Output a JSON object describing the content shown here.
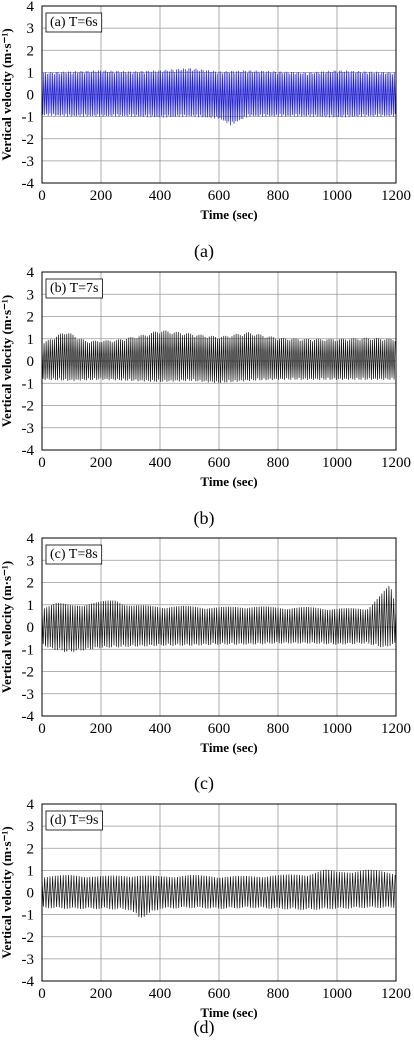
{
  "chart_data": [
    {
      "type": "line",
      "annotation": "(a) T=6s",
      "caption": "(a)",
      "xlabel": "Time (sec)",
      "ylabel": "Vertical velocity (m·s⁻¹)",
      "xlim": [
        0,
        1200
      ],
      "ylim": [
        -4,
        4
      ],
      "xticks": [
        0,
        200,
        400,
        600,
        800,
        1000,
        1200
      ],
      "yticks": [
        -4,
        -3,
        -2,
        -1,
        0,
        1,
        2,
        3,
        4
      ],
      "grid": true,
      "line_color": "#2020d0",
      "series": [
        {
          "period_s": 6,
          "envelope_max": [
            [
              0,
              1.0
            ],
            [
              100,
              1.05
            ],
            [
              200,
              1.1
            ],
            [
              300,
              1.05
            ],
            [
              400,
              1.1
            ],
            [
              500,
              1.2
            ],
            [
              600,
              1.05
            ],
            [
              700,
              1.1
            ],
            [
              800,
              1.05
            ],
            [
              900,
              1.0
            ],
            [
              1000,
              1.1
            ],
            [
              1100,
              1.05
            ],
            [
              1200,
              1.0
            ]
          ],
          "envelope_min": [
            [
              0,
              -0.95
            ],
            [
              100,
              -1.0
            ],
            [
              200,
              -1.0
            ],
            [
              300,
              -1.0
            ],
            [
              400,
              -1.05
            ],
            [
              500,
              -1.0
            ],
            [
              600,
              -1.1
            ],
            [
              640,
              -1.4
            ],
            [
              700,
              -1.0
            ],
            [
              800,
              -1.0
            ],
            [
              900,
              -1.0
            ],
            [
              1000,
              -1.05
            ],
            [
              1100,
              -1.0
            ],
            [
              1200,
              -1.0
            ]
          ]
        }
      ]
    },
    {
      "type": "line",
      "annotation": "(b) T=7s",
      "caption": "(b)",
      "xlabel": "Time (sec)",
      "ylabel": "Vertical velocity (m·s⁻¹)",
      "xlim": [
        0,
        1200
      ],
      "ylim": [
        -4,
        4
      ],
      "xticks": [
        0,
        200,
        400,
        600,
        800,
        1000,
        1200
      ],
      "yticks": [
        -4,
        -3,
        -2,
        -1,
        0,
        1,
        2,
        3,
        4
      ],
      "grid": true,
      "line_color": "#111111",
      "series": [
        {
          "period_s": 7,
          "envelope_max": [
            [
              0,
              0.8
            ],
            [
              80,
              1.35
            ],
            [
              150,
              0.9
            ],
            [
              250,
              0.95
            ],
            [
              350,
              1.2
            ],
            [
              400,
              1.4
            ],
            [
              500,
              1.25
            ],
            [
              600,
              1.1
            ],
            [
              700,
              1.3
            ],
            [
              800,
              1.05
            ],
            [
              900,
              1.0
            ],
            [
              1000,
              1.0
            ],
            [
              1100,
              1.05
            ],
            [
              1200,
              1.0
            ]
          ],
          "envelope_min": [
            [
              0,
              -0.85
            ],
            [
              100,
              -0.9
            ],
            [
              200,
              -0.85
            ],
            [
              300,
              -0.9
            ],
            [
              400,
              -0.95
            ],
            [
              500,
              -0.9
            ],
            [
              600,
              -1.0
            ],
            [
              700,
              -0.9
            ],
            [
              800,
              -0.85
            ],
            [
              900,
              -0.85
            ],
            [
              1000,
              -0.85
            ],
            [
              1100,
              -0.85
            ],
            [
              1200,
              -0.85
            ]
          ]
        }
      ]
    },
    {
      "type": "line",
      "annotation": "(c) T=8s",
      "caption": "(c)",
      "xlabel": "Time (sec)",
      "ylabel": "Vertical velocity (m·s⁻¹)",
      "xlim": [
        0,
        1200
      ],
      "ylim": [
        -4,
        4
      ],
      "xticks": [
        0,
        200,
        400,
        600,
        800,
        1000,
        1200
      ],
      "yticks": [
        -4,
        -3,
        -2,
        -1,
        0,
        1,
        2,
        3,
        4
      ],
      "grid": true,
      "line_color": "#111111",
      "series": [
        {
          "period_s": 8,
          "envelope_max": [
            [
              0,
              0.9
            ],
            [
              50,
              1.1
            ],
            [
              100,
              1.0
            ],
            [
              200,
              1.15
            ],
            [
              250,
              1.25
            ],
            [
              300,
              1.0
            ],
            [
              400,
              0.95
            ],
            [
              500,
              0.95
            ],
            [
              600,
              0.9
            ],
            [
              700,
              0.95
            ],
            [
              800,
              0.9
            ],
            [
              900,
              0.9
            ],
            [
              1000,
              0.85
            ],
            [
              1100,
              0.85
            ],
            [
              1180,
              1.9
            ],
            [
              1200,
              0.9
            ]
          ],
          "envelope_min": [
            [
              0,
              -0.8
            ],
            [
              30,
              -1.0
            ],
            [
              90,
              -1.15
            ],
            [
              200,
              -0.95
            ],
            [
              300,
              -0.9
            ],
            [
              400,
              -0.85
            ],
            [
              500,
              -0.85
            ],
            [
              600,
              -0.8
            ],
            [
              700,
              -0.8
            ],
            [
              800,
              -0.75
            ],
            [
              900,
              -0.75
            ],
            [
              1000,
              -0.8
            ],
            [
              1100,
              -0.75
            ],
            [
              1160,
              -0.95
            ],
            [
              1200,
              -0.75
            ]
          ]
        }
      ]
    },
    {
      "type": "line",
      "annotation": "(d) T=9s",
      "caption": "(d)",
      "xlabel": "Time (sec)",
      "ylabel": "Vertical velocity (m·s⁻¹)",
      "xlim": [
        0,
        1200
      ],
      "ylim": [
        -4,
        4
      ],
      "xticks": [
        0,
        200,
        400,
        600,
        800,
        1000,
        1200
      ],
      "yticks": [
        -4,
        -3,
        -2,
        -1,
        0,
        1,
        2,
        3,
        4
      ],
      "grid": true,
      "line_color": "#111111",
      "series": [
        {
          "period_s": 9,
          "envelope_max": [
            [
              0,
              0.75
            ],
            [
              100,
              0.8
            ],
            [
              200,
              0.75
            ],
            [
              300,
              0.8
            ],
            [
              400,
              0.75
            ],
            [
              500,
              0.8
            ],
            [
              600,
              0.75
            ],
            [
              700,
              0.75
            ],
            [
              800,
              0.8
            ],
            [
              900,
              0.85
            ],
            [
              960,
              1.05
            ],
            [
              1000,
              0.95
            ],
            [
              1100,
              1.05
            ],
            [
              1200,
              0.9
            ]
          ],
          "envelope_min": [
            [
              0,
              -0.7
            ],
            [
              100,
              -0.75
            ],
            [
              200,
              -0.75
            ],
            [
              300,
              -0.8
            ],
            [
              330,
              -1.2
            ],
            [
              400,
              -0.75
            ],
            [
              500,
              -0.7
            ],
            [
              600,
              -0.75
            ],
            [
              700,
              -0.7
            ],
            [
              800,
              -0.75
            ],
            [
              900,
              -0.8
            ],
            [
              1000,
              -0.75
            ],
            [
              1100,
              -0.7
            ],
            [
              1200,
              -0.7
            ]
          ]
        }
      ]
    }
  ]
}
